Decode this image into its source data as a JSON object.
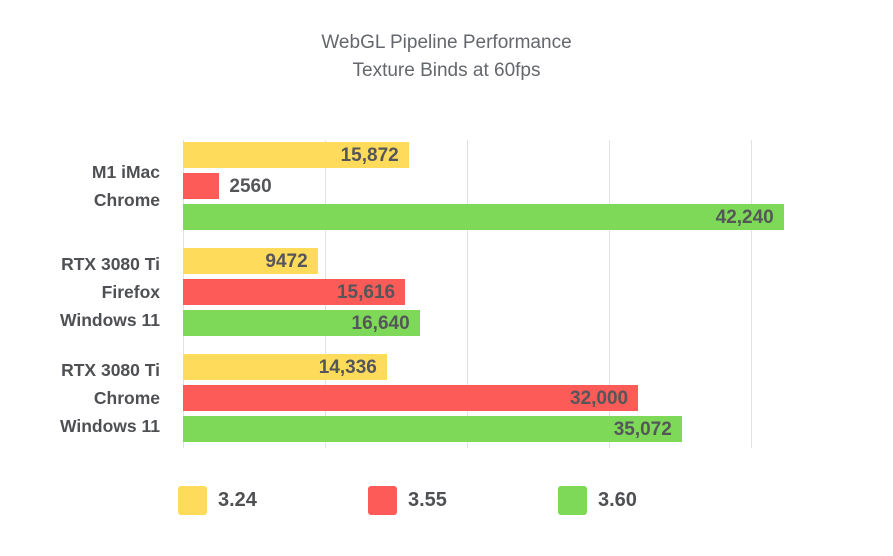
{
  "title": {
    "line1": "WebGL Pipeline Performance",
    "line2": "Texture Binds at 60fps"
  },
  "chart_data": {
    "type": "bar",
    "orientation": "horizontal",
    "title": "WebGL Pipeline Performance",
    "subtitle": "Texture Binds at 60fps",
    "categories": [
      [
        "M1 iMac",
        "Chrome"
      ],
      [
        "RTX 3080 Ti",
        "Firefox",
        "Windows 11"
      ],
      [
        "RTX 3080 Ti",
        "Chrome",
        "Windows 11"
      ]
    ],
    "series": [
      {
        "name": "3.24",
        "color": "#FFDB5C",
        "values": [
          15872,
          9472,
          14336
        ],
        "value_labels": [
          "15,872",
          "9472",
          "14,336"
        ]
      },
      {
        "name": "3.55",
        "color": "#FC5B57",
        "values": [
          2560,
          15616,
          32000
        ],
        "value_labels": [
          "2560",
          "15,616",
          "32,000"
        ]
      },
      {
        "name": "3.60",
        "color": "#7DD957",
        "values": [
          42240,
          16640,
          35072
        ],
        "value_labels": [
          "42,240",
          "16,640",
          "35,072"
        ]
      }
    ],
    "xlim": [
      0,
      47600
    ],
    "gridlines": [
      0,
      10000,
      20000,
      30000,
      40000
    ],
    "grid": true,
    "axis_tick_labels_visible": false,
    "value_labels_visible": true,
    "legend_position": "bottom"
  },
  "legend": {
    "items": [
      {
        "label": "3.24",
        "color": "#FFDB5C"
      },
      {
        "label": "3.55",
        "color": "#FC5B57"
      },
      {
        "label": "3.60",
        "color": "#7DD957"
      }
    ]
  },
  "colors": {
    "gridline": "#E2E2E2",
    "title_text": "#64676c",
    "category_text": "#4e5053",
    "value_text": "#55565a",
    "background": "#ffffff"
  }
}
